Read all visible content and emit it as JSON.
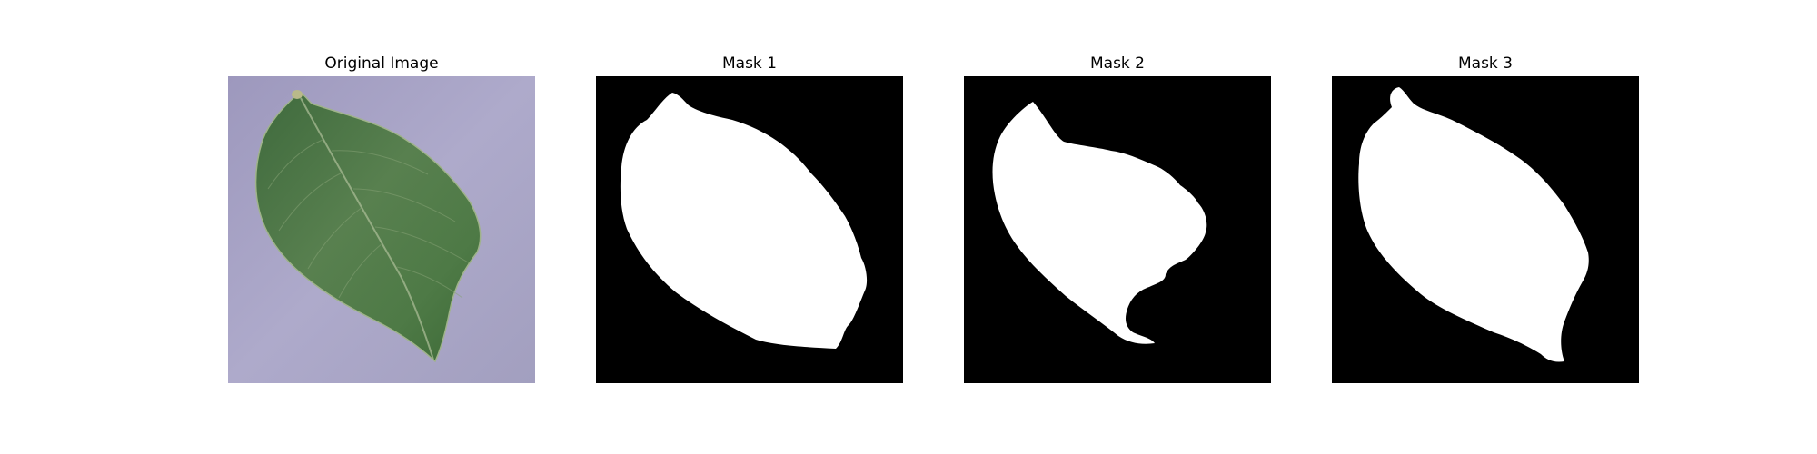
{
  "panels": [
    {
      "title": "Original Image"
    },
    {
      "title": "Mask 1"
    },
    {
      "title": "Mask 2"
    },
    {
      "title": "Mask 3"
    }
  ],
  "colors": {
    "mask_background": "#000000",
    "mask_foreground": "#ffffff",
    "photo_background": "#a8a3c3",
    "leaf": "#4f7a45"
  }
}
